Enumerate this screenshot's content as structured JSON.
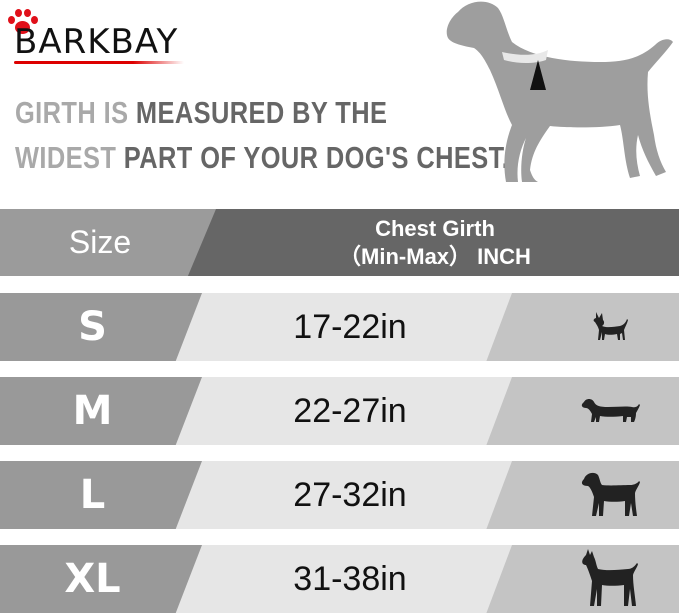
{
  "brand": {
    "logo_text": "BARKBAY"
  },
  "headline": {
    "line1": [
      {
        "text": "GIRTH IS ",
        "tone": "light"
      },
      {
        "text": "MEASURED BY THE",
        "tone": "dark"
      }
    ],
    "line2": [
      {
        "text": "WIDEST ",
        "tone": "light"
      },
      {
        "text": "PART OF YOUR DOG'S CHEST.",
        "tone": "dark"
      }
    ]
  },
  "table": {
    "header": {
      "size": "Size",
      "girth_line1": "Chest Girth",
      "girth_line2": "（Min-Max） INCH"
    },
    "rows": [
      {
        "size": "S",
        "girth": "17-22in",
        "icon": "chihuahua-icon"
      },
      {
        "size": "M",
        "girth": "22-27in",
        "icon": "dachshund-icon"
      },
      {
        "size": "L",
        "girth": "27-32in",
        "icon": "labrador-icon"
      },
      {
        "size": "XL",
        "girth": "31-38in",
        "icon": "great-dane-icon"
      }
    ]
  },
  "colors": {
    "paw": "#e0101a",
    "header_left": "#9b9b9b",
    "header_right": "#666666",
    "row_left": "#999999",
    "row_mid": "#e6e6e6",
    "row_right": "#c4c4c4"
  }
}
